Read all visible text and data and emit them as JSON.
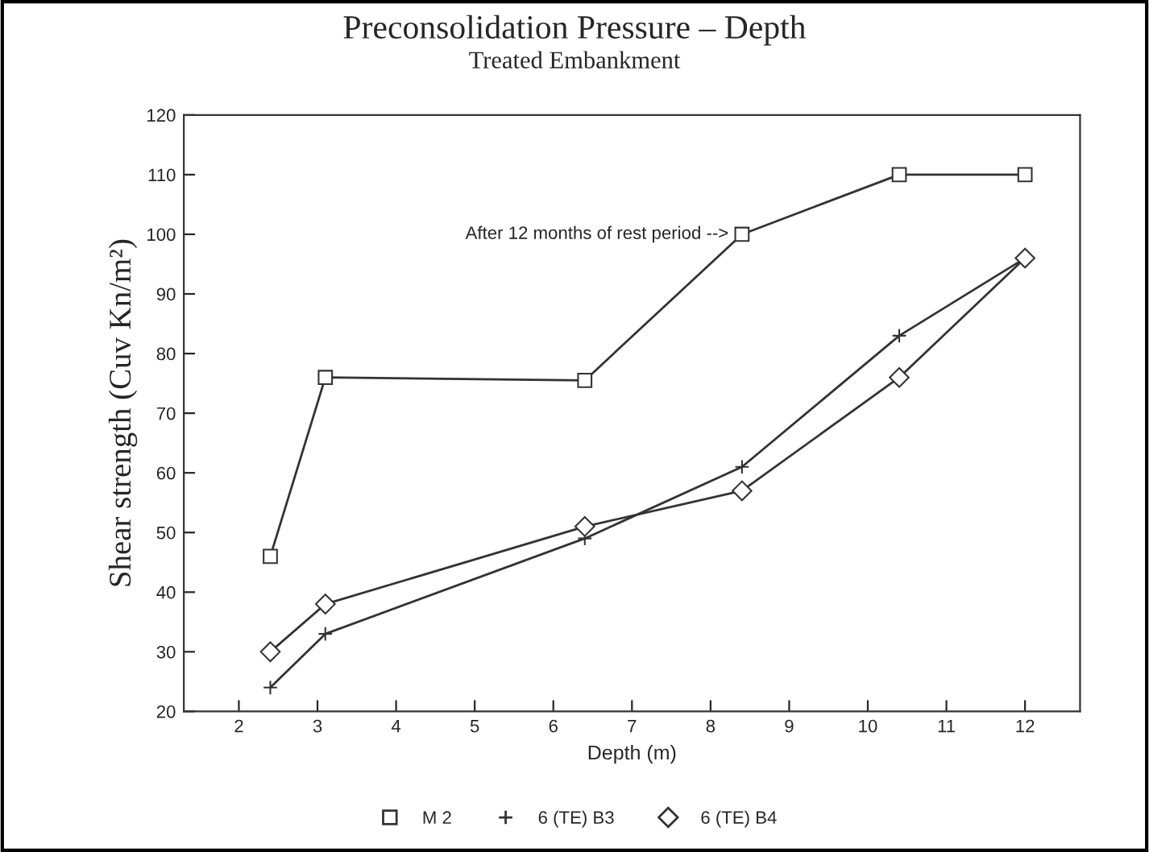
{
  "chart_data": {
    "type": "line",
    "title": "Preconsolidation Pressure – Depth",
    "subtitle": "Treated Embankment",
    "xlabel": "Depth (m)",
    "ylabel": "Shear strength (Cuv Kn/m²)",
    "x": [
      2.4,
      3.1,
      6.4,
      8.4,
      10.4,
      12
    ],
    "series": [
      {
        "name": "M 2",
        "color": "#333333",
        "marker": "square",
        "values": [
          46,
          76,
          75.5,
          100,
          110,
          110
        ]
      },
      {
        "name": "6 (TE) B3",
        "color": "#333333",
        "marker": "cross",
        "values": [
          24,
          33,
          49,
          61,
          83,
          96
        ]
      },
      {
        "name": "6 (TE) B4",
        "color": "#333333",
        "marker": "diamond",
        "values": [
          30,
          38,
          51,
          57,
          76,
          96
        ]
      }
    ],
    "annotations": [
      {
        "text": "After 12 months of rest period -->",
        "x": 8.4,
        "y": 100
      }
    ],
    "xlim": [
      1.3,
      12.7
    ],
    "ylim": [
      20,
      120
    ],
    "xticks": [
      2,
      3,
      4,
      5,
      6,
      7,
      8,
      9,
      10,
      11,
      12
    ],
    "yticks": [
      20,
      30,
      40,
      50,
      60,
      70,
      80,
      90,
      100,
      110,
      120
    ],
    "grid": false,
    "legend": "bottom",
    "line_style": "solid"
  }
}
